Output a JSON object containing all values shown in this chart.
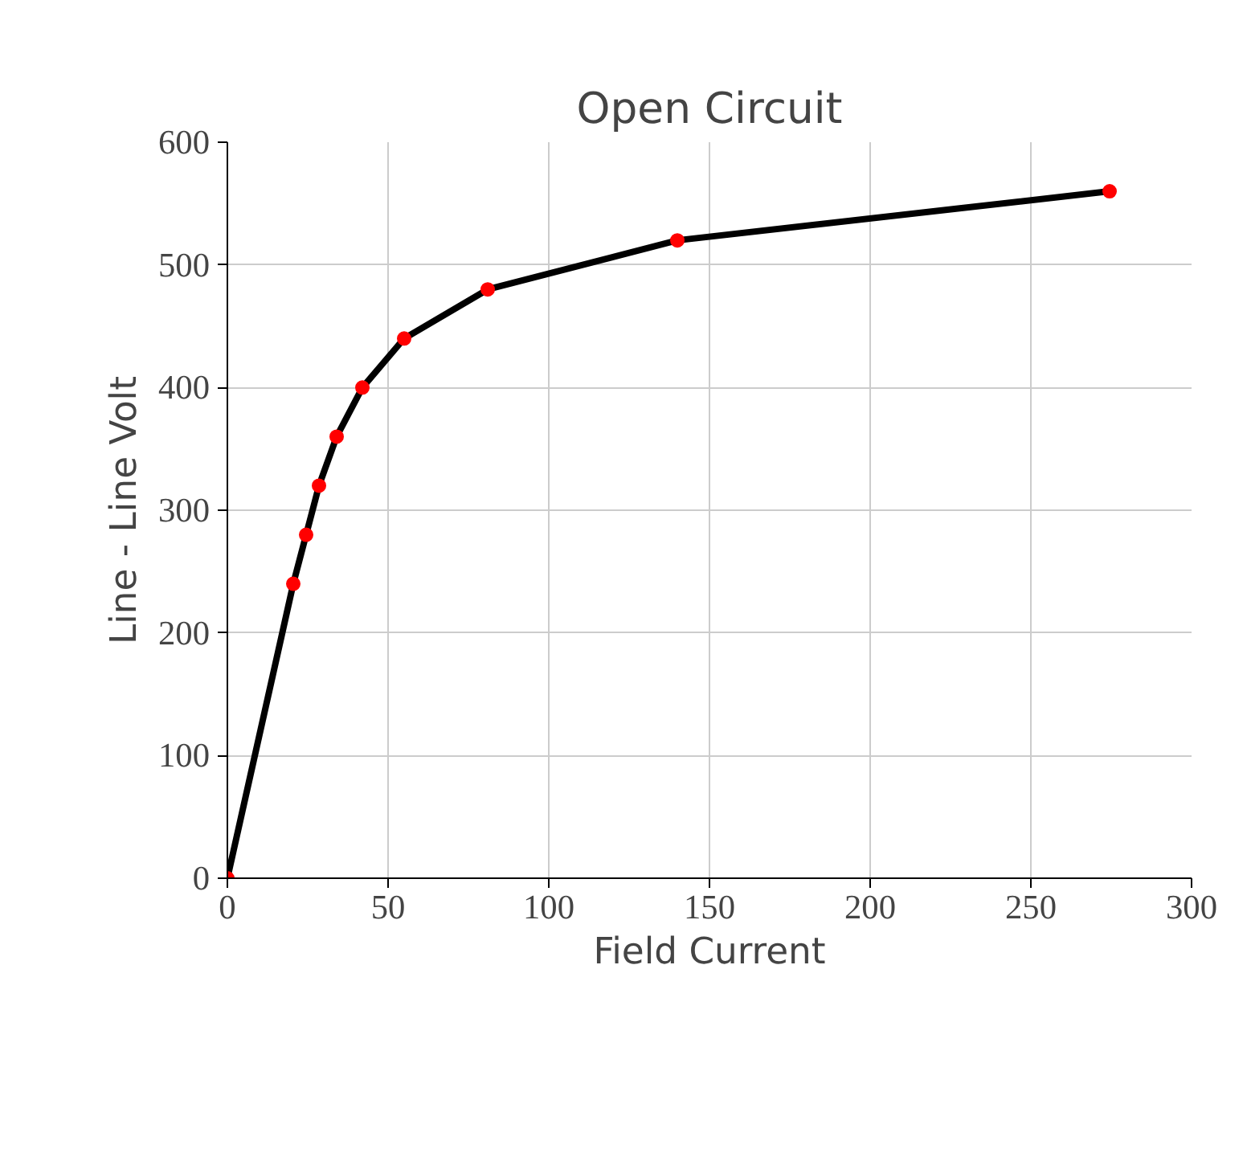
{
  "chart_data": {
    "type": "line",
    "title": "Open Circuit",
    "xlabel": "Field Current",
    "ylabel": "Line - Line Volt",
    "x": [
      0,
      20.5,
      24.5,
      28.5,
      34,
      42,
      55,
      81,
      140,
      274.5
    ],
    "series": [
      {
        "color": "#000000",
        "colors": [
          "#ff0000",
          "#ff0000",
          "#ff0000",
          "#ff0000",
          "#ff0000",
          "#ff0000",
          "#ff0000",
          "#ff0000",
          "#ff0000",
          "#ff0000"
        ],
        "values": [
          0,
          240,
          280,
          320,
          360,
          400,
          440,
          480,
          520,
          560
        ]
      }
    ],
    "xlim": [
      0,
      300
    ],
    "xticks": [
      0,
      50,
      100,
      150,
      200,
      250,
      300
    ],
    "ylim": [
      0,
      600
    ],
    "yticks": [
      0,
      100,
      200,
      300,
      400,
      500,
      600
    ],
    "grid": true,
    "marker": "circle",
    "line_style": "solid"
  }
}
